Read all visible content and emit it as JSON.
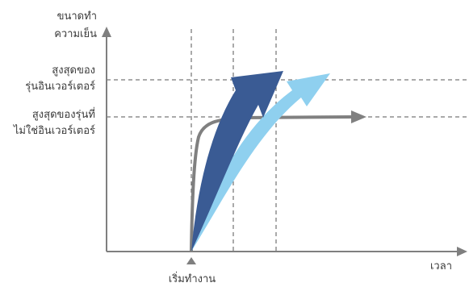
{
  "y_axis_label": [
    "ขนาดทำ",
    "ความเย็น"
  ],
  "x_axis_label": "เวลา",
  "start_label": "เริ่มทำงาน",
  "inverter_max_label": [
    "สูงสุดของ",
    "รุ่นอินเวอร์เตอร์"
  ],
  "non_inverter_max_label": [
    "สูงสุดของรุ่นที่",
    "ไม่ใช่อินเวอร์เตอร์"
  ],
  "colors": {
    "axis": "#7f7f7f",
    "gridline": "#555555",
    "non_inverter_curve": "#808080",
    "inverter_arrow_dark": "#3a5b94",
    "inverter_arrow_light": "#8fd0ef",
    "text": "#3a3a3a"
  }
}
